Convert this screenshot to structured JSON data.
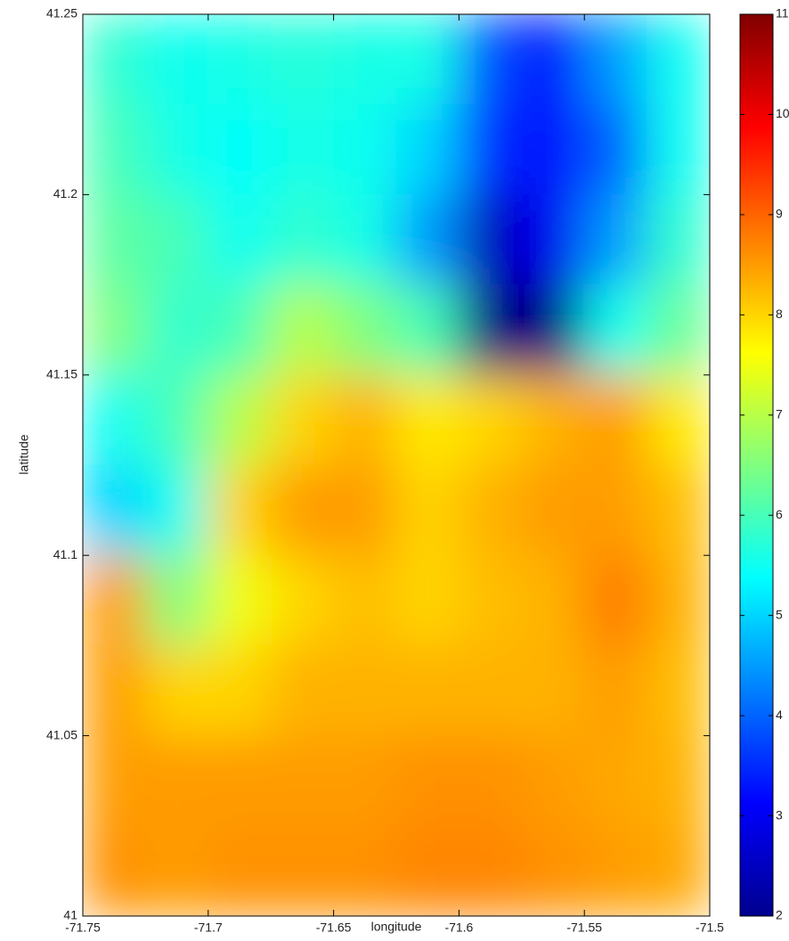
{
  "chart_data": {
    "type": "heatmap",
    "xlabel": "longitude",
    "ylabel": "latitude",
    "xlim": [
      -71.75,
      -71.5
    ],
    "ylim": [
      41,
      41.25
    ],
    "xticks": [
      -71.75,
      -71.7,
      -71.65,
      -71.6,
      -71.55,
      -71.5
    ],
    "yticks": [
      41,
      41.05,
      41.1,
      41.15,
      41.2,
      41.25
    ],
    "x": [
      -71.7375,
      -71.7125,
      -71.6875,
      -71.6625,
      -71.6375,
      -71.6125,
      -71.5875,
      -71.5625,
      -71.5375,
      -71.5125
    ],
    "y": [
      41.2375,
      41.2125,
      41.1875,
      41.1625,
      41.1375,
      41.1125,
      41.0875,
      41.0625,
      41.0375,
      41.0125
    ],
    "z": [
      [
        5.8,
        5.5,
        5.6,
        5.7,
        5.6,
        5.6,
        3.8,
        3.2,
        4.5,
        5.5
      ],
      [
        6,
        5.6,
        5.4,
        5.6,
        5.5,
        5,
        3.5,
        3.2,
        4,
        5.5
      ],
      [
        6.2,
        6,
        5.5,
        5.8,
        5.6,
        4.5,
        2.5,
        3,
        4.5,
        5.8
      ],
      [
        6.5,
        5.8,
        6,
        7,
        6.5,
        6,
        2,
        2,
        5.5,
        6.3
      ],
      [
        5.5,
        6,
        7,
        8,
        8.3,
        7.8,
        8,
        8.3,
        8.5,
        7.8
      ],
      [
        5,
        5.5,
        8,
        8.5,
        8.5,
        8,
        8.3,
        8.5,
        8.5,
        8.2
      ],
      [
        8.5,
        6.5,
        7.5,
        8,
        8.2,
        8,
        8.2,
        8.3,
        8.8,
        8.3
      ],
      [
        8.5,
        8,
        8,
        8.3,
        8.3,
        8.3,
        8.3,
        8.3,
        8.5,
        8.2
      ],
      [
        8.5,
        8.5,
        8.5,
        8.5,
        8.5,
        8.6,
        8.6,
        8.5,
        8.4,
        8.3
      ],
      [
        8.6,
        8.5,
        8.6,
        8.6,
        8.6,
        8.7,
        8.7,
        8.6,
        8.5,
        8.4
      ]
    ],
    "colormap": "jet",
    "clim": [
      2,
      11
    ],
    "cticks": [
      2,
      3,
      4,
      5,
      6,
      7,
      8,
      9,
      10,
      11
    ]
  }
}
